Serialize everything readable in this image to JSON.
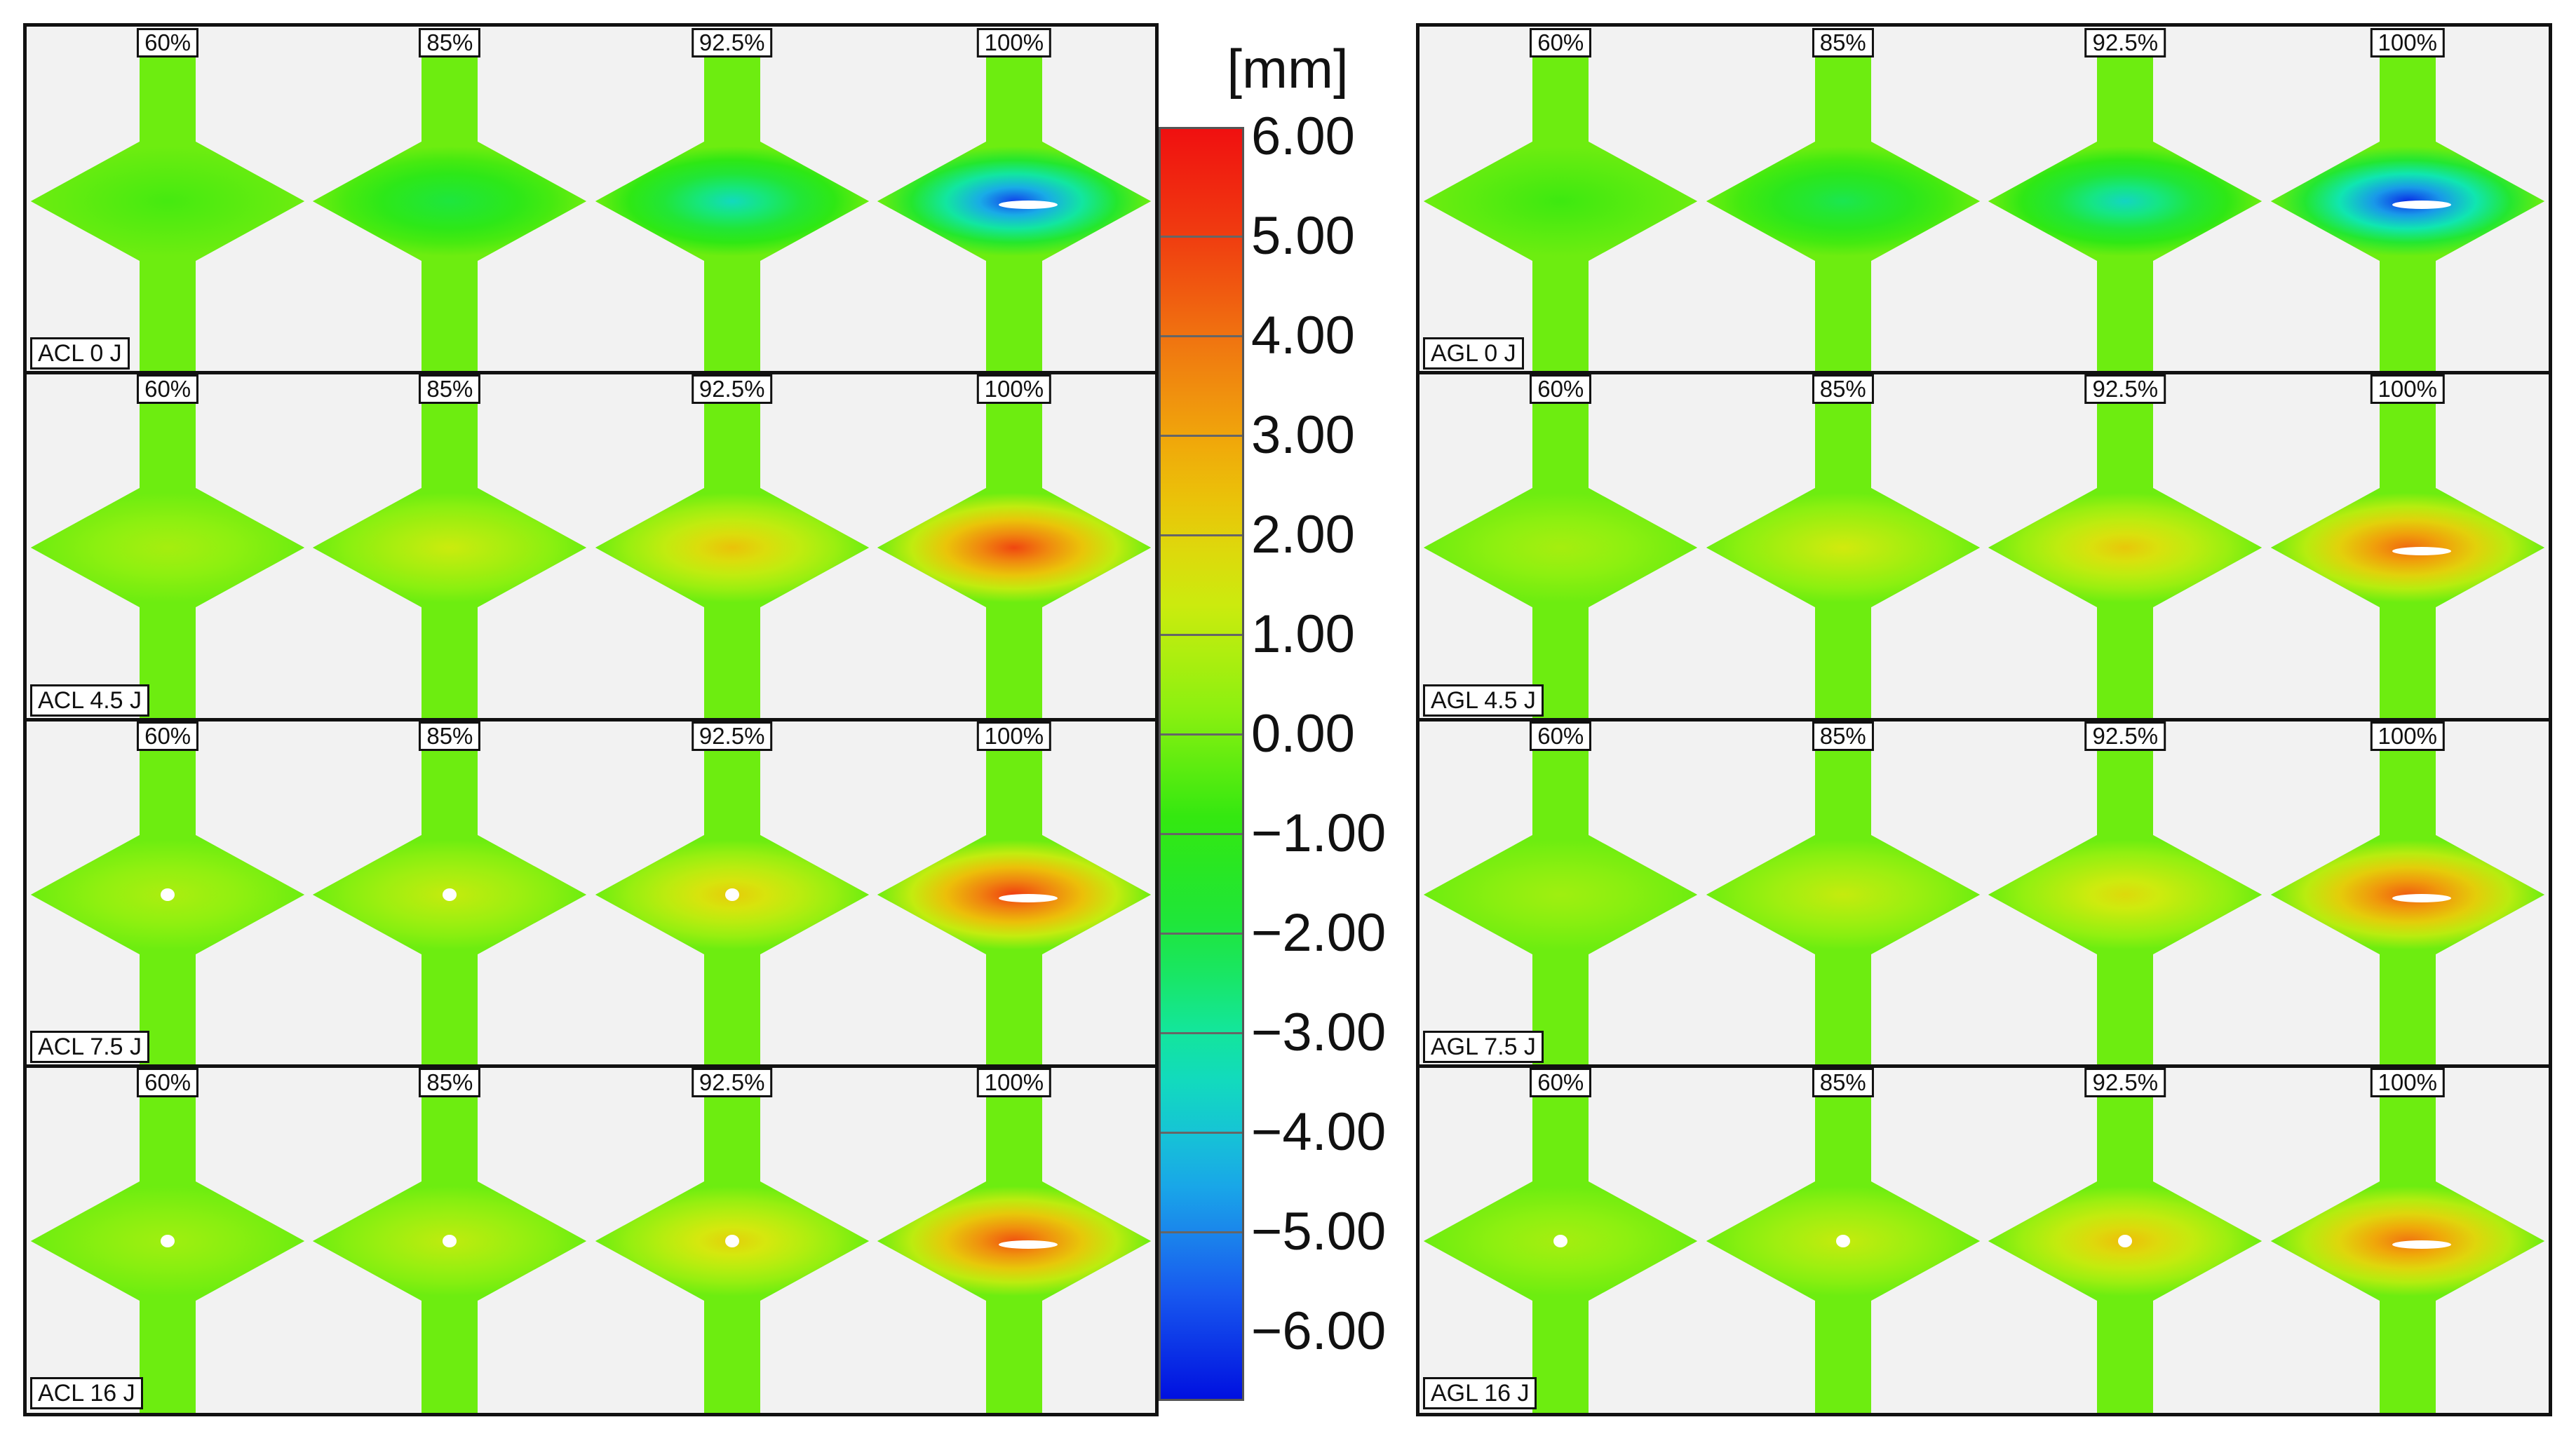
{
  "colorbar": {
    "unit": "[mm]",
    "labels": [
      "6.00",
      "5.00",
      "4.00",
      "3.00",
      "2.00",
      "1.00",
      "0.00",
      "−1.00",
      "−2.00",
      "−3.00",
      "−4.00",
      "−5.00",
      "−6.00"
    ],
    "range": [
      -6,
      6
    ],
    "colors": [
      "#0010e0",
      "#1a60f0",
      "#19b4e6",
      "#10e6b0",
      "#1de640",
      "#30e810",
      "#8ff010",
      "#d4ea0e",
      "#f0b808",
      "#f08010",
      "#f04010",
      "#f01010"
    ]
  },
  "percent_labels": [
    "60%",
    "85%",
    "92.5%",
    "100%"
  ],
  "panels": [
    {
      "name": "acl",
      "rows": [
        {
          "label": "ACL 0 J",
          "peaks": [
            -0.3,
            -1.6,
            -3.0,
            -5.3
          ],
          "holes": [
            false,
            false,
            false,
            true
          ]
        },
        {
          "label": "ACL 4.5 J",
          "peaks": [
            0.9,
            1.5,
            2.5,
            4.8
          ],
          "holes": [
            false,
            false,
            false,
            false
          ]
        },
        {
          "label": "ACL 7.5 J",
          "peaks": [
            1.0,
            1.4,
            2.3,
            5.0
          ],
          "holes": [
            true,
            true,
            true,
            true
          ]
        },
        {
          "label": "ACL 16 J",
          "peaks": [
            0.8,
            1.3,
            2.2,
            4.6
          ],
          "holes": [
            true,
            true,
            true,
            true
          ]
        }
      ]
    },
    {
      "name": "agl",
      "rows": [
        {
          "label": "AGL 0 J",
          "peaks": [
            -0.4,
            -1.8,
            -3.1,
            -5.6
          ],
          "holes": [
            false,
            false,
            false,
            true
          ]
        },
        {
          "label": "AGL 4.5 J",
          "peaks": [
            0.9,
            1.6,
            2.4,
            4.2
          ],
          "holes": [
            false,
            false,
            false,
            true
          ]
        },
        {
          "label": "AGL 7.5 J",
          "peaks": [
            0.8,
            1.4,
            2.0,
            4.4
          ],
          "holes": [
            false,
            false,
            false,
            true
          ]
        },
        {
          "label": "AGL 16 J",
          "peaks": [
            0.9,
            1.4,
            2.6,
            4.0
          ],
          "holes": [
            true,
            true,
            true,
            true
          ]
        }
      ]
    }
  ]
}
